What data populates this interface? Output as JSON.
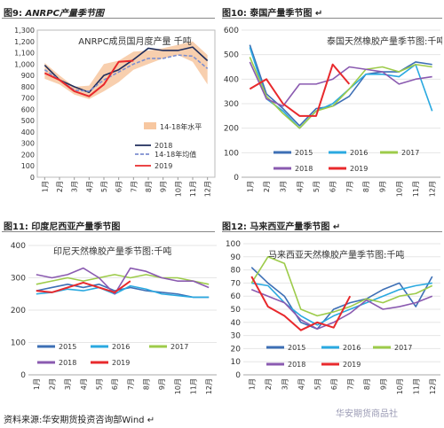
{
  "figures": [
    {
      "id": "fig9",
      "label": "图9:",
      "caption": "ANRPC产量季节图",
      "mark": "",
      "chart_data": {
        "type": "line",
        "title": "ANRPC成员国月度产量",
        "unit_label": "千吨",
        "x": [
          "1月",
          "2月",
          "3月",
          "4月",
          "5月",
          "6月",
          "7月",
          "8月",
          "9月",
          "10月",
          "11月",
          "12月"
        ],
        "ylim": [
          0,
          1300
        ],
        "yticks": [
          "0",
          "100",
          "200",
          "300",
          "400",
          "500",
          "600",
          "700",
          "800",
          "900",
          "1,000",
          "1,100",
          "1,200",
          "1,300"
        ],
        "band": {
          "name": "14-18年水平",
          "low": [
            870,
            820,
            730,
            690,
            760,
            840,
            950,
            1000,
            1050,
            1080,
            1020,
            820
          ],
          "high": [
            1010,
            900,
            800,
            810,
            1000,
            1030,
            1110,
            1120,
            1140,
            1170,
            1200,
            1080
          ]
        },
        "series": [
          {
            "name": "2018",
            "color": "#1f2d5c",
            "dash": "",
            "values": [
              990,
              860,
              800,
              750,
              900,
              950,
              1040,
              1140,
              1120,
              1120,
              1150,
              1030
            ]
          },
          {
            "name": "14-18年均值",
            "color": "#7d8fd1",
            "dash": "4,2",
            "values": [
              950,
              860,
              770,
              760,
              860,
              930,
              1000,
              1050,
              1050,
              1080,
              1070,
              960
            ]
          },
          {
            "name": "2019",
            "color": "#e8292c",
            "dash": "",
            "values": [
              920,
              860,
              760,
              715,
              820,
              1020,
              1030,
              null,
              null,
              null,
              null,
              null
            ]
          }
        ]
      }
    },
    {
      "id": "fig10",
      "label": "图10:",
      "caption": "泰国产量季节图",
      "mark": "↵",
      "chart_data": {
        "type": "line",
        "title": "泰国天然橡胶产量季节图:千吨",
        "x": [
          "1月",
          "2月",
          "3月",
          "4月",
          "5月",
          "6月",
          "7月",
          "8月",
          "9月",
          "10月",
          "11月",
          "12月"
        ],
        "ylim": [
          0,
          600
        ],
        "yticks": [
          "0",
          "100",
          "200",
          "300",
          "400",
          "500",
          "600"
        ],
        "series": [
          {
            "name": "2015",
            "color": "#3d6fb5",
            "values": [
              540,
              340,
              280,
              210,
              280,
              290,
              330,
              420,
              430,
              430,
              470,
              460
            ]
          },
          {
            "name": "2016",
            "color": "#2aa9e0",
            "values": [
              530,
              320,
              270,
              200,
              270,
              300,
              360,
              420,
              420,
              410,
              460,
              270
            ]
          },
          {
            "name": "2017",
            "color": "#9dcb4a",
            "values": [
              490,
              330,
              260,
              200,
              270,
              290,
              360,
              440,
              450,
              430,
              460,
              450
            ]
          },
          {
            "name": "2018",
            "color": "#8a5ab0",
            "values": [
              470,
              320,
              290,
              380,
              380,
              400,
              450,
              440,
              430,
              380,
              400,
              410
            ]
          },
          {
            "name": "2019",
            "color": "#e8292c",
            "values": [
              360,
              400,
              300,
              250,
              250,
              460,
              380,
              null,
              null,
              null,
              null,
              null
            ]
          }
        ]
      }
    },
    {
      "id": "fig11",
      "label": "图11:",
      "caption": "印度尼西亚产量季节图",
      "mark": "",
      "chart_data": {
        "type": "line",
        "title": "印尼天然橡胶产量季节图:千吨",
        "x": [
          "1月",
          "2月",
          "3月",
          "4月",
          "5月",
          "6月",
          "7月",
          "8月",
          "9月",
          "10月",
          "11月",
          "12月"
        ],
        "ylim": [
          0,
          400
        ],
        "yticks": [
          "0",
          "100",
          "200",
          "300",
          "400"
        ],
        "series": [
          {
            "name": "2015",
            "color": "#3d6fb5",
            "values": [
              260,
              270,
              280,
              270,
              280,
              260,
              270,
              260,
              255,
              250,
              240,
              240
            ]
          },
          {
            "name": "2016",
            "color": "#2aa9e0",
            "values": [
              250,
              255,
              265,
              260,
              270,
              250,
              275,
              265,
              250,
              245,
              240,
              240
            ]
          },
          {
            "name": "2017",
            "color": "#9dcb4a",
            "values": [
              280,
              290,
              300,
              290,
              300,
              310,
              300,
              310,
              300,
              300,
              290,
              280
            ]
          },
          {
            "name": "2018",
            "color": "#8a5ab0",
            "values": [
              310,
              300,
              310,
              330,
              300,
              250,
              330,
              320,
              300,
              290,
              290,
              270
            ]
          },
          {
            "name": "2019",
            "color": "#e8292c",
            "values": [
              260,
              255,
              270,
              285,
              270,
              255,
              290,
              null,
              null,
              null,
              null,
              null
            ]
          }
        ]
      }
    },
    {
      "id": "fig12",
      "label": "图12:",
      "caption": "马来西亚产量季节图",
      "mark": "↵",
      "chart_data": {
        "type": "line",
        "title": "马来西亚天然橡胶产量季节图:千吨",
        "x": [
          "1月",
          "2月",
          "3月",
          "4月",
          "5月",
          "6月",
          "7月",
          "8月",
          "9月",
          "10月",
          "11月",
          "12月"
        ],
        "ylim": [
          0,
          100
        ],
        "yticks": [
          "0",
          "10",
          "20",
          "30",
          "40",
          "50",
          "60",
          "70",
          "80",
          "90",
          "100"
        ],
        "series": [
          {
            "name": "2015",
            "color": "#3d6fb5",
            "values": [
              82,
              70,
              60,
              40,
              35,
              50,
              55,
              58,
              65,
              70,
              52,
              75
            ]
          },
          {
            "name": "2016",
            "color": "#2aa9e0",
            "values": [
              70,
              68,
              55,
              45,
              38,
              45,
              50,
              55,
              60,
              65,
              68,
              70
            ]
          },
          {
            "name": "2017",
            "color": "#9dcb4a",
            "values": [
              70,
              90,
              85,
              50,
              45,
              48,
              52,
              58,
              55,
              60,
              62,
              68
            ]
          },
          {
            "name": "2018",
            "color": "#8a5ab0",
            "values": [
              65,
              60,
              55,
              42,
              35,
              40,
              47,
              57,
              50,
              52,
              55,
              60
            ]
          },
          {
            "name": "2019",
            "color": "#e8292c",
            "values": [
              75,
              52,
              45,
              34,
              40,
              36,
              60,
              null,
              null,
              null,
              null,
              null
            ]
          }
        ]
      }
    }
  ],
  "footer": "资料来源:华安期货投资咨询部Wind",
  "footer_mark": "↵",
  "watermark": "华安期货商品社"
}
